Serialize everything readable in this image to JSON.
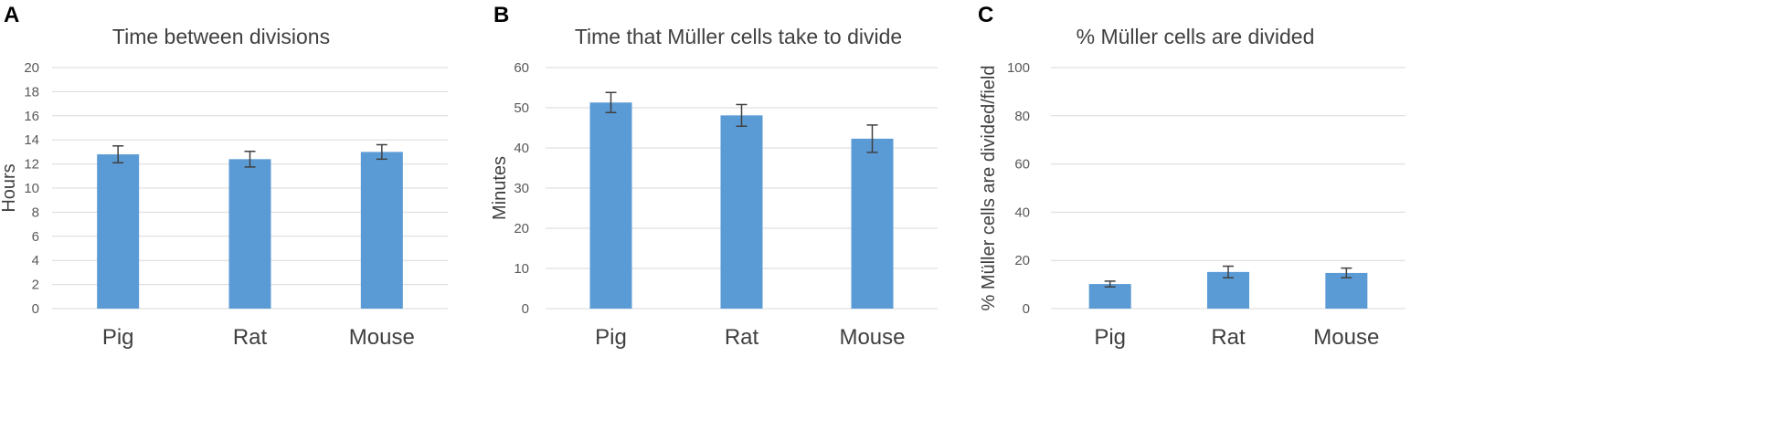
{
  "chart_data": [
    {
      "panel": "A",
      "type": "bar",
      "title": "Time between divisions",
      "ylabel": "Hours",
      "xlabel": "",
      "categories": [
        "Pig",
        "Rat",
        "Mouse"
      ],
      "values": [
        12.8,
        12.4,
        13.0
      ],
      "errors": [
        0.7,
        0.65,
        0.6
      ],
      "ylim": [
        0,
        20
      ],
      "yticks": [
        0,
        2,
        4,
        6,
        8,
        10,
        12,
        14,
        16,
        18,
        20
      ],
      "grid": true,
      "color": "#5b9bd5"
    },
    {
      "panel": "B",
      "type": "bar",
      "title": "Time that Müller cells take to divide",
      "ylabel": "Minutes",
      "xlabel": "",
      "categories": [
        "Pig",
        "Rat",
        "Mouse"
      ],
      "values": [
        51.3,
        48.1,
        42.3
      ],
      "errors": [
        2.5,
        2.7,
        3.4
      ],
      "ylim": [
        0,
        60
      ],
      "yticks": [
        0,
        10,
        20,
        30,
        40,
        50,
        60
      ],
      "grid": true,
      "color": "#5b9bd5"
    },
    {
      "panel": "C",
      "type": "bar",
      "title": "% Müller cells are divided",
      "ylabel": "% Müller cells are divided/field",
      "xlabel": "",
      "categories": [
        "Pig",
        "Rat",
        "Mouse"
      ],
      "values": [
        10.2,
        15.2,
        14.8
      ],
      "errors": [
        1.2,
        2.4,
        2.0
      ],
      "ylim": [
        0,
        100
      ],
      "yticks": [
        0,
        20,
        40,
        60,
        80,
        100
      ],
      "grid": true,
      "color": "#5b9bd5"
    }
  ]
}
